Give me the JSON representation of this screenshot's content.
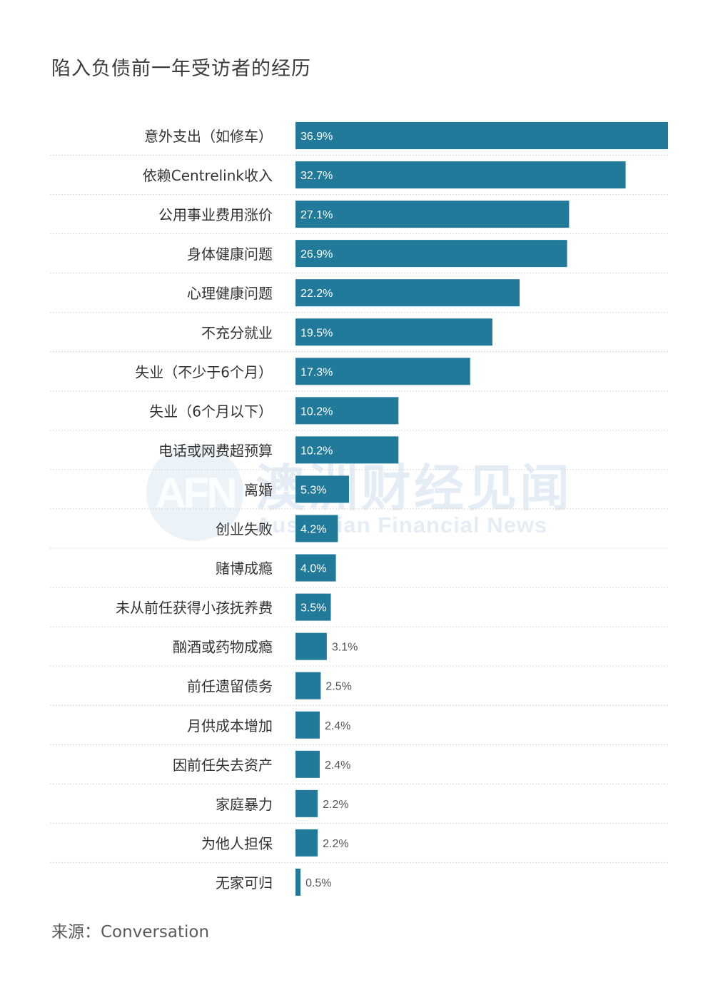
{
  "title": "陷入负债前一年受访者的经历",
  "source": "来源：Conversation",
  "watermark": {
    "logo": "AFN",
    "cn": "澳洲财经见闻",
    "en": "Australian Financial News"
  },
  "colors": {
    "bar": "#217a99",
    "grid": "#d9d9d9",
    "label": "#333333",
    "value_inside": "#ffffff",
    "value_outside": "#555555"
  },
  "chart_data": {
    "type": "bar",
    "orientation": "horizontal",
    "categories": [
      "意外支出（如修车）",
      "依赖Centrelink收入",
      "公用事业费用涨价",
      "身体健康问题",
      "心理健康问题",
      "不充分就业",
      "失业（不少于6个月）",
      "失业（6个月以下）",
      "电话或网费超预算",
      "离婚",
      "创业失败",
      "赌博成瘾",
      "未从前任获得小孩抚养费",
      "酗酒或药物成瘾",
      "前任遗留债务",
      "月供成本增加",
      "因前任失去资产",
      "家庭暴力",
      "为他人担保",
      "无家可归"
    ],
    "values": [
      36.9,
      32.7,
      27.1,
      26.9,
      22.2,
      19.5,
      17.3,
      10.2,
      10.2,
      5.3,
      4.2,
      4.0,
      3.5,
      3.1,
      2.5,
      2.4,
      2.4,
      2.2,
      2.2,
      0.5
    ],
    "value_labels": [
      "36.9%",
      "32.7%",
      "27.1%",
      "26.9%",
      "22.2%",
      "19.5%",
      "17.3%",
      "10.2%",
      "10.2%",
      "5.3%",
      "4.2%",
      "4.0%",
      "3.5%",
      "3.1%",
      "2.5%",
      "2.4%",
      "2.4%",
      "2.2%",
      "2.2%",
      "0.5%"
    ],
    "unit": "%",
    "xlim": [
      0,
      36.9
    ],
    "grid": "horizontal separators",
    "legend": "none"
  }
}
